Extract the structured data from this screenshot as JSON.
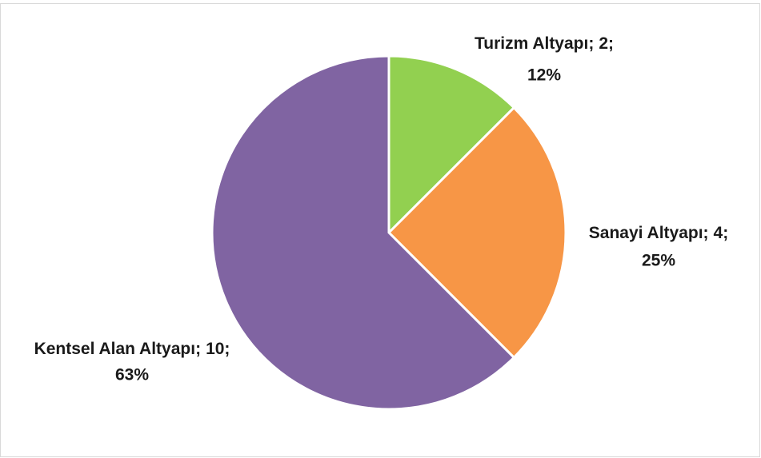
{
  "chart_data": {
    "type": "pie",
    "categories": [
      "Turizm Altyapı;",
      "Sanayi Altyapı;",
      "Kentsel Alan Altyapı;"
    ],
    "values": [
      2,
      4,
      10
    ],
    "value_labels": [
      "2;",
      "4;",
      "10;"
    ],
    "percent_labels": [
      "12%",
      "25%",
      "63%"
    ],
    "colors": [
      "#92d050",
      "#f79646",
      "#8064a2"
    ]
  }
}
